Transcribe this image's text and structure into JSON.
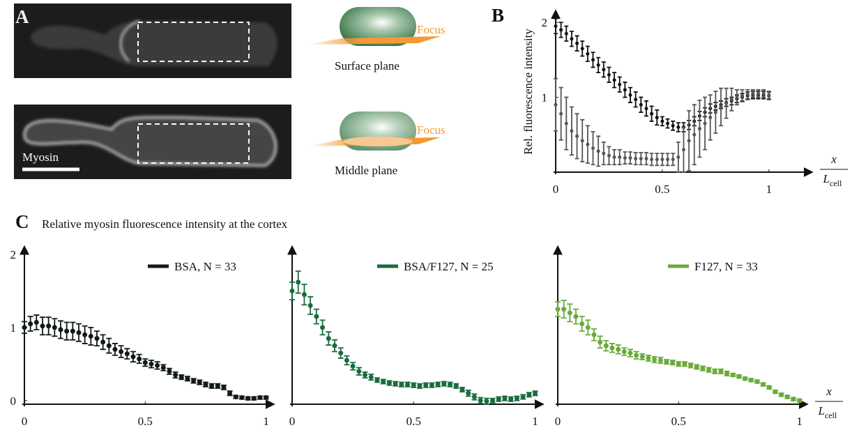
{
  "panel_labels": {
    "a": "A",
    "b": "B",
    "c": "C"
  },
  "panel_a": {
    "focus_top": "Focus",
    "surface": "Surface plane",
    "focus_bottom": "Focus",
    "middle": "Middle plane",
    "stain": "Myosin"
  },
  "panel_c_title": "Relative myosin fluorescence intensity at the cortex",
  "chart_data": [
    {
      "type": "errorbar",
      "ylabel": "Rel. fluorescence intensity",
      "xlabel": "x",
      "xlabel_denominator": "L",
      "xlabel_subscript": "cell",
      "xlim": [
        0,
        1.2
      ],
      "ylim": [
        0,
        2.15
      ],
      "xticks": [
        0,
        0.5,
        1
      ],
      "yticks": [
        1,
        2
      ],
      "x": [
        0,
        0.025,
        0.05,
        0.075,
        0.1,
        0.125,
        0.15,
        0.175,
        0.2,
        0.225,
        0.25,
        0.275,
        0.3,
        0.325,
        0.35,
        0.375,
        0.4,
        0.425,
        0.45,
        0.475,
        0.5,
        0.525,
        0.55,
        0.575,
        0.6,
        0.625,
        0.65,
        0.675,
        0.7,
        0.725,
        0.75,
        0.775,
        0.8,
        0.825,
        0.85,
        0.875,
        0.9,
        0.925,
        0.95,
        0.975,
        1
      ],
      "series": [
        {
          "color": "#111111",
          "values": [
            1.95,
            1.9,
            1.85,
            1.78,
            1.72,
            1.65,
            1.58,
            1.5,
            1.43,
            1.37,
            1.3,
            1.23,
            1.17,
            1.1,
            1.03,
            0.97,
            0.9,
            0.85,
            0.78,
            0.73,
            0.68,
            0.65,
            0.62,
            0.6,
            0.6,
            0.63,
            0.68,
            0.75,
            0.8,
            0.85,
            0.88,
            0.9,
            0.93,
            0.95,
            0.98,
            1.0,
            1.02,
            1.03,
            1.03,
            1.03,
            1.02
          ],
          "errors": [
            0.1,
            0.1,
            0.1,
            0.1,
            0.1,
            0.1,
            0.1,
            0.1,
            0.1,
            0.1,
            0.1,
            0.1,
            0.1,
            0.1,
            0.1,
            0.1,
            0.1,
            0.1,
            0.1,
            0.1,
            0.06,
            0.06,
            0.06,
            0.06,
            0.06,
            0.06,
            0.06,
            0.06,
            0.06,
            0.06,
            0.05,
            0.05,
            0.05,
            0.05,
            0.05,
            0.05,
            0.05,
            0.05,
            0.05,
            0.05,
            0.05
          ]
        },
        {
          "color": "#555555",
          "values": [
            0.9,
            0.78,
            0.65,
            0.55,
            0.48,
            0.42,
            0.37,
            0.32,
            0.28,
            0.25,
            0.22,
            0.2,
            0.2,
            0.19,
            0.19,
            0.18,
            0.18,
            0.18,
            0.17,
            0.17,
            0.17,
            0.17,
            0.17,
            0.2,
            0.3,
            0.42,
            0.5,
            0.58,
            0.65,
            0.73,
            0.8,
            0.87,
            0.92,
            0.97,
            1.0,
            1.02,
            1.04,
            1.05,
            1.05,
            1.05,
            1.03
          ],
          "errors": [
            0.35,
            0.35,
            0.35,
            0.32,
            0.3,
            0.28,
            0.25,
            0.22,
            0.2,
            0.15,
            0.12,
            0.1,
            0.1,
            0.08,
            0.08,
            0.08,
            0.08,
            0.08,
            0.08,
            0.08,
            0.08,
            0.08,
            0.08,
            0.2,
            0.3,
            0.4,
            0.4,
            0.38,
            0.35,
            0.3,
            0.28,
            0.25,
            0.2,
            0.15,
            0.1,
            0.08,
            0.06,
            0.05,
            0.05,
            0.05,
            0.05
          ]
        }
      ]
    },
    {
      "type": "errorbar",
      "xlim": [
        0,
        1.03
      ],
      "ylim": [
        -0.05,
        2.1
      ],
      "xticks": [
        0,
        0.5,
        1
      ],
      "yticks": [
        0,
        1,
        2
      ],
      "x": [
        0,
        0.025,
        0.05,
        0.075,
        0.1,
        0.125,
        0.15,
        0.175,
        0.2,
        0.225,
        0.25,
        0.275,
        0.3,
        0.325,
        0.35,
        0.375,
        0.4,
        0.425,
        0.45,
        0.475,
        0.5,
        0.525,
        0.55,
        0.575,
        0.6,
        0.625,
        0.65,
        0.675,
        0.7,
        0.725,
        0.75,
        0.775,
        0.8,
        0.825,
        0.85,
        0.875,
        0.9,
        0.925,
        0.95,
        0.975,
        1
      ],
      "series": [
        {
          "name": "BSA, N = 33",
          "color": "#111a14",
          "values": [
            1.0,
            1.05,
            1.07,
            1.02,
            1.02,
            1.0,
            0.97,
            0.95,
            0.95,
            0.93,
            0.9,
            0.88,
            0.85,
            0.8,
            0.75,
            0.7,
            0.67,
            0.64,
            0.6,
            0.57,
            0.52,
            0.5,
            0.48,
            0.45,
            0.4,
            0.35,
            0.32,
            0.3,
            0.27,
            0.25,
            0.22,
            0.2,
            0.2,
            0.18,
            0.1,
            0.05,
            0.04,
            0.03,
            0.03,
            0.04,
            0.04
          ],
          "errors": [
            0.08,
            0.1,
            0.1,
            0.12,
            0.12,
            0.12,
            0.12,
            0.12,
            0.12,
            0.12,
            0.12,
            0.12,
            0.1,
            0.1,
            0.1,
            0.08,
            0.08,
            0.07,
            0.07,
            0.06,
            0.05,
            0.05,
            0.05,
            0.04,
            0.04,
            0.04,
            0.03,
            0.03,
            0.03,
            0.03,
            0.03,
            0.03,
            0.03,
            0.03,
            0.03,
            0.02,
            0.02,
            0.02,
            0.02,
            0.02,
            0.02
          ]
        }
      ]
    },
    {
      "type": "errorbar",
      "xlim": [
        0,
        1.03
      ],
      "ylim": [
        -0.05,
        2.1
      ],
      "xticks": [
        0,
        0.5,
        1
      ],
      "x": [
        0,
        0.025,
        0.05,
        0.075,
        0.1,
        0.125,
        0.15,
        0.175,
        0.2,
        0.225,
        0.25,
        0.275,
        0.3,
        0.325,
        0.35,
        0.375,
        0.4,
        0.425,
        0.45,
        0.475,
        0.5,
        0.525,
        0.55,
        0.575,
        0.6,
        0.625,
        0.65,
        0.675,
        0.7,
        0.725,
        0.75,
        0.775,
        0.8,
        0.825,
        0.85,
        0.875,
        0.9,
        0.925,
        0.95,
        0.975,
        1
      ],
      "series": [
        {
          "name": "BSA/F127, N = 25",
          "color": "#1a6b3c",
          "values": [
            1.5,
            1.62,
            1.45,
            1.3,
            1.15,
            1.0,
            0.85,
            0.75,
            0.65,
            0.55,
            0.47,
            0.4,
            0.35,
            0.32,
            0.28,
            0.26,
            0.24,
            0.23,
            0.22,
            0.22,
            0.21,
            0.2,
            0.21,
            0.21,
            0.22,
            0.23,
            0.22,
            0.2,
            0.15,
            0.1,
            0.05,
            0.0,
            -0.01,
            0.0,
            0.02,
            0.03,
            0.02,
            0.03,
            0.05,
            0.08,
            0.1
          ],
          "errors": [
            0.12,
            0.15,
            0.14,
            0.12,
            0.1,
            0.1,
            0.09,
            0.08,
            0.07,
            0.06,
            0.05,
            0.05,
            0.04,
            0.04,
            0.03,
            0.03,
            0.03,
            0.03,
            0.03,
            0.03,
            0.03,
            0.03,
            0.03,
            0.03,
            0.03,
            0.03,
            0.03,
            0.03,
            0.03,
            0.04,
            0.04,
            0.04,
            0.04,
            0.03,
            0.03,
            0.03,
            0.03,
            0.03,
            0.03,
            0.03,
            0.03
          ]
        }
      ]
    },
    {
      "type": "errorbar",
      "xlabel": "x",
      "xlabel_denominator": "L",
      "xlabel_subscript": "cell",
      "xlim": [
        0,
        1.03
      ],
      "ylim": [
        -0.05,
        2.1
      ],
      "xticks": [
        0,
        0.5,
        1
      ],
      "x": [
        0,
        0.025,
        0.05,
        0.075,
        0.1,
        0.125,
        0.15,
        0.175,
        0.2,
        0.225,
        0.25,
        0.275,
        0.3,
        0.325,
        0.35,
        0.375,
        0.4,
        0.425,
        0.45,
        0.475,
        0.5,
        0.525,
        0.55,
        0.575,
        0.6,
        0.625,
        0.65,
        0.675,
        0.7,
        0.725,
        0.75,
        0.775,
        0.8,
        0.825,
        0.85,
        0.875,
        0.9,
        0.925,
        0.95,
        0.975,
        1
      ],
      "series": [
        {
          "name": "F127, N = 33",
          "color": "#6aaa3a",
          "values": [
            1.25,
            1.25,
            1.2,
            1.15,
            1.05,
            1.0,
            0.9,
            0.8,
            0.75,
            0.72,
            0.7,
            0.67,
            0.65,
            0.62,
            0.6,
            0.58,
            0.56,
            0.55,
            0.53,
            0.52,
            0.5,
            0.5,
            0.48,
            0.46,
            0.44,
            0.42,
            0.4,
            0.4,
            0.37,
            0.35,
            0.33,
            0.3,
            0.28,
            0.26,
            0.22,
            0.18,
            0.12,
            0.08,
            0.05,
            0.02,
            0.0
          ],
          "errors": [
            0.1,
            0.12,
            0.12,
            0.1,
            0.1,
            0.1,
            0.08,
            0.08,
            0.07,
            0.06,
            0.06,
            0.05,
            0.05,
            0.05,
            0.04,
            0.04,
            0.04,
            0.04,
            0.03,
            0.03,
            0.03,
            0.03,
            0.03,
            0.03,
            0.03,
            0.03,
            0.03,
            0.03,
            0.03,
            0.02,
            0.02,
            0.02,
            0.02,
            0.02,
            0.02,
            0.02,
            0.02,
            0.02,
            0.02,
            0.02,
            0.02
          ]
        }
      ]
    }
  ]
}
